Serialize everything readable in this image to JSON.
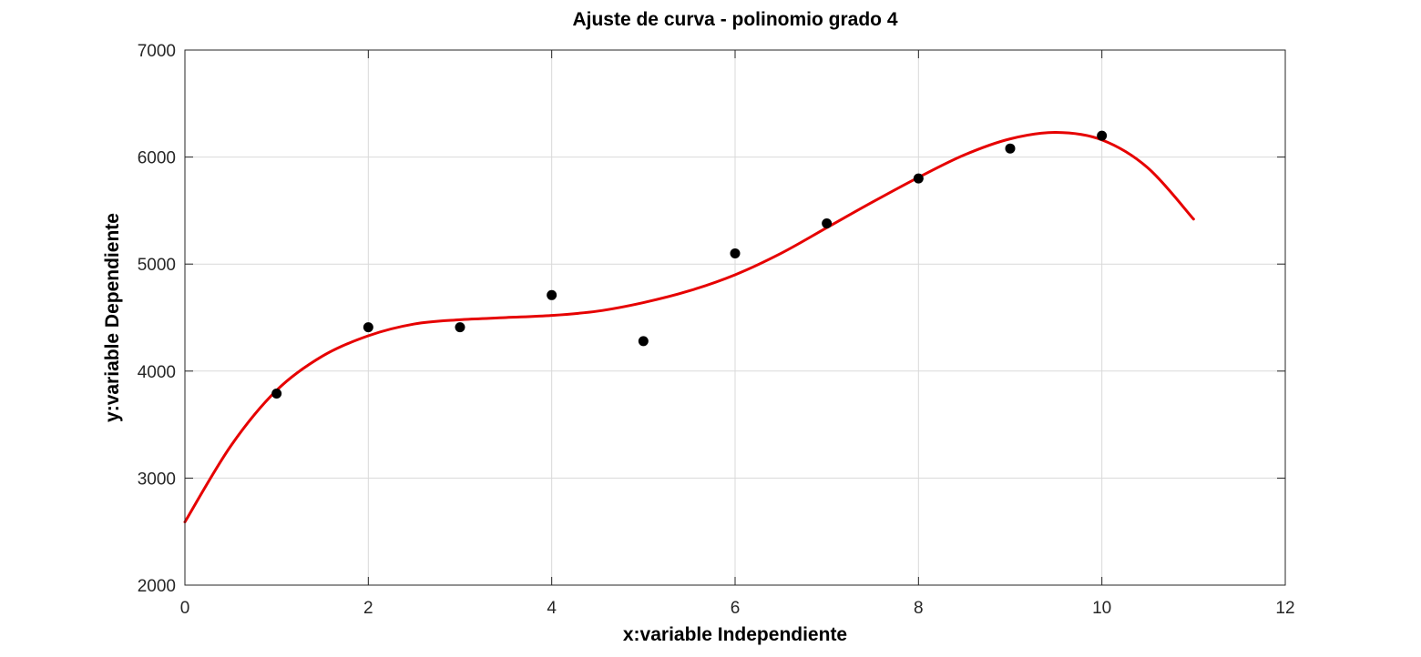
{
  "chart_data": {
    "type": "scatter",
    "title": "Ajuste de curva - polinomio grado 4",
    "xlabel": "x:variable Independiente",
    "ylabel": "y:variable Dependiente",
    "xlim": [
      0,
      12
    ],
    "ylim": [
      2000,
      7000
    ],
    "xticks": [
      0,
      2,
      4,
      6,
      8,
      10,
      12
    ],
    "yticks": [
      2000,
      3000,
      4000,
      5000,
      6000,
      7000
    ],
    "grid": true,
    "legend": "none",
    "series": [
      {
        "kind": "points",
        "color": "#000000",
        "x": [
          1,
          2,
          3,
          4,
          5,
          6,
          7,
          8,
          9,
          10
        ],
        "y": [
          3790,
          4410,
          4410,
          4710,
          4280,
          5100,
          5380,
          5800,
          6080,
          6200
        ]
      },
      {
        "kind": "fitted-curve",
        "color": "#e60000",
        "x": [
          0,
          0.5,
          1,
          1.5,
          2,
          2.5,
          3,
          3.5,
          4,
          4.5,
          5,
          5.5,
          6,
          6.5,
          7,
          7.5,
          8,
          8.5,
          9,
          9.5,
          10,
          10.5,
          11
        ],
        "y": [
          2590,
          3300,
          3820,
          4140,
          4330,
          4440,
          4480,
          4500,
          4520,
          4560,
          4640,
          4750,
          4900,
          5100,
          5340,
          5580,
          5810,
          6020,
          6170,
          6230,
          6160,
          5900,
          5420
        ]
      }
    ]
  }
}
